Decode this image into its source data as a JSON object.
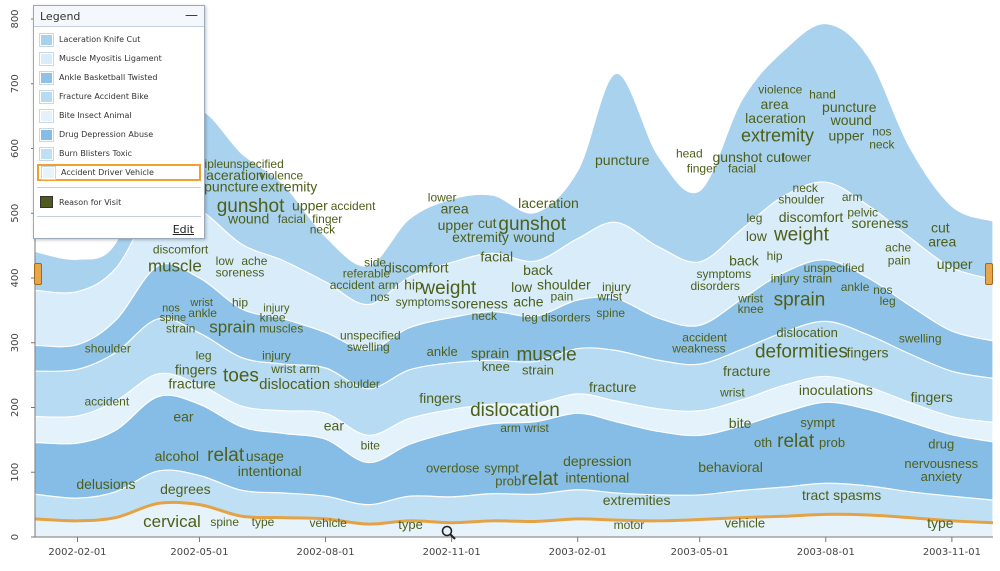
{
  "legend": {
    "title": "Legend",
    "minimize_glyph": "—",
    "items": [
      {
        "label": "Laceration Knife Cut",
        "color": "#a9d2ee"
      },
      {
        "label": "Muscle Myositis Ligament",
        "color": "#d8ecfa"
      },
      {
        "label": "Ankle Basketball Twisted",
        "color": "#8fc2e8"
      },
      {
        "label": "Fracture Accident Bike",
        "color": "#b7dbf2"
      },
      {
        "label": "Bite Insect Animal",
        "color": "#e3f2fb"
      },
      {
        "label": "Drug Depression Abuse",
        "color": "#86bde6"
      },
      {
        "label": "Burn Blisters Toxic",
        "color": "#bfe0f4"
      },
      {
        "label": "Accident Driver Vehicle",
        "color": "#e6f3fb",
        "selected": true
      }
    ],
    "reason_label": "Reason for Visit",
    "reason_color": "#4e5a1e",
    "edit_label": "Edit"
  },
  "chart_data": {
    "type": "area",
    "subtype": "stacked streamgraph with word clouds",
    "x": [
      "2002-01-01",
      "2002-02-01",
      "2002-03-01",
      "2002-04-01",
      "2002-05-01",
      "2002-06-01",
      "2002-07-01",
      "2002-08-01",
      "2002-09-01",
      "2002-10-01",
      "2002-11-01",
      "2002-12-01",
      "2003-01-01",
      "2003-02-01",
      "2003-03-01",
      "2003-04-01",
      "2003-05-01",
      "2003-06-01",
      "2003-07-01",
      "2003-08-01",
      "2003-09-01",
      "2003-10-01",
      "2003-11-01",
      "2003-12-01"
    ],
    "xticks": [
      "2002-02-01",
      "2002-05-01",
      "2002-08-01",
      "2002-11-01",
      "2003-02-01",
      "2003-05-01",
      "2003-08-01",
      "2003-11-01"
    ],
    "yticks": [
      0,
      100,
      200,
      300,
      400,
      500,
      600,
      700,
      800
    ],
    "ylim": [
      0,
      810
    ],
    "grid": false,
    "legend_position": "top-left",
    "series": [
      {
        "name": "Accident Driver Vehicle",
        "color": "#e6f3fb",
        "values": [
          28,
          25,
          30,
          52,
          50,
          32,
          30,
          28,
          20,
          25,
          22,
          25,
          24,
          28,
          26,
          25,
          27,
          30,
          32,
          35,
          34,
          30,
          25,
          22
        ]
      },
      {
        "name": "Burn Blisters Toxic",
        "color": "#bfe0f4",
        "values": [
          38,
          35,
          40,
          50,
          45,
          40,
          38,
          35,
          30,
          38,
          40,
          42,
          42,
          45,
          42,
          40,
          38,
          42,
          45,
          48,
          45,
          40,
          38,
          35
        ]
      },
      {
        "name": "Drug Depression Abuse",
        "color": "#86bde6",
        "values": [
          80,
          85,
          95,
          115,
          110,
          98,
          92,
          88,
          65,
          80,
          100,
          108,
          112,
          118,
          110,
          98,
          92,
          100,
          115,
          125,
          118,
          108,
          95,
          90
        ]
      },
      {
        "name": "Bite Insect Animal",
        "color": "#e3f2fb",
        "values": [
          40,
          42,
          45,
          35,
          30,
          32,
          35,
          40,
          42,
          40,
          35,
          30,
          28,
          30,
          32,
          35,
          38,
          40,
          42,
          40,
          35,
          30,
          28,
          30
        ]
      },
      {
        "name": "Fracture Accident Bike",
        "color": "#b7dbf2",
        "values": [
          70,
          72,
          75,
          85,
          80,
          75,
          72,
          70,
          72,
          75,
          72,
          68,
          65,
          70,
          78,
          75,
          72,
          78,
          82,
          85,
          80,
          75,
          70,
          68
        ]
      },
      {
        "name": "Ankle Basketball Twisted",
        "color": "#8fc2e8",
        "values": [
          40,
          38,
          50,
          82,
          85,
          75,
          70,
          55,
          60,
          65,
          70,
          75,
          70,
          75,
          80,
          65,
          60,
          78,
          92,
          95,
          88,
          75,
          62,
          58
        ]
      },
      {
        "name": "Muscle Myositis Ligament",
        "color": "#d8ecfa",
        "values": [
          85,
          82,
          80,
          100,
          105,
          100,
          90,
          78,
          70,
          78,
          85,
          90,
          85,
          95,
          118,
          110,
          98,
          108,
          118,
          120,
          112,
          105,
          98,
          95
        ]
      },
      {
        "name": "Laceration Knife Cut",
        "color": "#a9d2ee",
        "values": [
          60,
          50,
          40,
          105,
          155,
          140,
          118,
          70,
          60,
          90,
          98,
          90,
          75,
          105,
          230,
          140,
          110,
          200,
          225,
          245,
          230,
          140,
          95,
          90
        ]
      }
    ],
    "words": [
      [
        "tiple",
        0.185,
        575.0,
        12
      ],
      [
        "unspecified",
        0.228,
        575.0,
        12
      ],
      [
        "laceration",
        0.207,
        557.0,
        14
      ],
      [
        "violence",
        0.257,
        557.0,
        12
      ],
      [
        "puncture",
        0.205,
        539.0,
        14
      ],
      [
        "extremity",
        0.265,
        539.0,
        14
      ],
      [
        "gunshot",
        0.225,
        510.0,
        19
      ],
      [
        "upper",
        0.287,
        510.0,
        14
      ],
      [
        "accident",
        0.332,
        510.0,
        12
      ],
      [
        "wound",
        0.223,
        490.0,
        14
      ],
      [
        "facial",
        0.268,
        490.0,
        12
      ],
      [
        "finger",
        0.305,
        490.0,
        12
      ],
      [
        "neck",
        0.3,
        474.0,
        12
      ],
      [
        "discomfort",
        0.152,
        443.0,
        12
      ],
      [
        "muscle",
        0.146,
        417.0,
        17
      ],
      [
        "low",
        0.198,
        425.0,
        12
      ],
      [
        "ache",
        0.229,
        425.0,
        12
      ],
      [
        "soreness",
        0.214,
        407.0,
        12
      ],
      [
        "nos",
        0.142,
        353.0,
        11
      ],
      [
        "wrist",
        0.174,
        361.0,
        11
      ],
      [
        "hip",
        0.214,
        361.0,
        12
      ],
      [
        "injury",
        0.252,
        353.0,
        11
      ],
      [
        "spine",
        0.144,
        338.0,
        11
      ],
      [
        "ankle",
        0.175,
        345.0,
        12
      ],
      [
        "knee",
        0.248,
        338.0,
        12
      ],
      [
        "strain",
        0.152,
        321.0,
        12
      ],
      [
        "sprain",
        0.206,
        323.0,
        17
      ],
      [
        "muscles",
        0.257,
        321.0,
        12
      ],
      [
        "unspecified",
        0.35,
        310.0,
        12
      ],
      [
        "swelling",
        0.348,
        292.0,
        12
      ],
      [
        "shoulder",
        0.076,
        290.0,
        12
      ],
      [
        "leg",
        0.176,
        279.0,
        12
      ],
      [
        "injury",
        0.252,
        279.0,
        12
      ],
      [
        "fingers",
        0.168,
        257.0,
        14
      ],
      [
        "toes",
        0.215,
        248.0,
        19
      ],
      [
        "wrist arm",
        0.272,
        258.0,
        12
      ],
      [
        "fracture",
        0.164,
        235.0,
        14
      ],
      [
        "dislocation",
        0.271,
        235.0,
        15
      ],
      [
        "shoulder",
        0.336,
        235.0,
        12
      ],
      [
        "accident",
        0.075,
        208.0,
        12
      ],
      [
        "ear",
        0.155,
        184.0,
        14
      ],
      [
        "ear",
        0.312,
        170.0,
        14
      ],
      [
        "bite",
        0.35,
        140.0,
        12
      ],
      [
        "alcohol",
        0.148,
        123.0,
        14
      ],
      [
        "relat",
        0.199,
        125.0,
        19
      ],
      [
        "usage",
        0.24,
        123.0,
        14
      ],
      [
        "intentional",
        0.245,
        100.0,
        14
      ],
      [
        "delusions",
        0.074,
        80.0,
        14
      ],
      [
        "degrees",
        0.157,
        72.0,
        14
      ],
      [
        "cervical",
        0.143,
        22.0,
        17
      ],
      [
        "spine",
        0.198,
        22.0,
        12
      ],
      [
        "type",
        0.238,
        22.0,
        12
      ],
      [
        "vehicle",
        0.306,
        20.0,
        12
      ],
      [
        "type",
        0.392,
        18.0,
        13
      ],
      [
        "lower",
        0.425,
        523.0,
        12
      ],
      [
        "area",
        0.438,
        505.0,
        14
      ],
      [
        "upper",
        0.439,
        480.0,
        14
      ],
      [
        "cut",
        0.472,
        483.0,
        14
      ],
      [
        "gunshot",
        0.519,
        482.0,
        19
      ],
      [
        "laceration",
        0.536,
        514.0,
        14
      ],
      [
        "extremity",
        0.465,
        461.0,
        14
      ],
      [
        "wound",
        0.521,
        461.0,
        14
      ],
      [
        "facial",
        0.482,
        431.0,
        14
      ],
      [
        "side",
        0.355,
        423.0,
        12
      ],
      [
        "discomfort",
        0.398,
        414.0,
        14
      ],
      [
        "referable",
        0.346,
        406.0,
        12
      ],
      [
        "accident",
        0.331,
        388.0,
        12
      ],
      [
        "arm",
        0.369,
        388.0,
        12
      ],
      [
        "hip",
        0.395,
        388.0,
        14
      ],
      [
        "weight",
        0.432,
        383.0,
        19
      ],
      [
        "nos",
        0.36,
        369.0,
        12
      ],
      [
        "symptoms",
        0.405,
        362.0,
        12
      ],
      [
        "soreness",
        0.464,
        359.0,
        14
      ],
      [
        "neck",
        0.469,
        340.0,
        12
      ],
      [
        "back",
        0.525,
        410.0,
        14
      ],
      [
        "low",
        0.508,
        384.0,
        14
      ],
      [
        "shoulder",
        0.552,
        388.0,
        14
      ],
      [
        "pain",
        0.55,
        370.0,
        12
      ],
      [
        "ache",
        0.515,
        362.0,
        14
      ],
      [
        "leg disorders",
        0.544,
        338.0,
        12
      ],
      [
        "ankle",
        0.425,
        285.0,
        13
      ],
      [
        "sprain",
        0.475,
        282.0,
        14
      ],
      [
        "knee",
        0.481,
        262.0,
        13
      ],
      [
        "muscle",
        0.534,
        280.0,
        19
      ],
      [
        "strain",
        0.525,
        256.0,
        13
      ],
      [
        "fingers",
        0.423,
        213.0,
        14
      ],
      [
        "dislocation",
        0.501,
        195.0,
        19
      ],
      [
        "arm wrist",
        0.511,
        167.0,
        12
      ],
      [
        "overdose",
        0.436,
        105.0,
        13
      ],
      [
        "sympt",
        0.487,
        105.0,
        13
      ],
      [
        "prob",
        0.494,
        85.0,
        13
      ],
      [
        "relat",
        0.527,
        88.0,
        19
      ],
      [
        "intentional",
        0.587,
        90.0,
        14
      ],
      [
        "depression",
        0.587,
        115.0,
        14
      ],
      [
        "extremities",
        0.628,
        55.0,
        14
      ],
      [
        "motor",
        0.62,
        17.0,
        12
      ],
      [
        "puncture",
        0.613,
        580.0,
        14
      ],
      [
        "injury",
        0.607,
        385.0,
        12
      ],
      [
        "wrist",
        0.6,
        370.0,
        12
      ],
      [
        "spine",
        0.601,
        345.0,
        12
      ],
      [
        "fracture",
        0.603,
        230.0,
        14
      ],
      [
        "head",
        0.683,
        591.0,
        12
      ],
      [
        "gunshot cut",
        0.745,
        585.0,
        14
      ],
      [
        "lower",
        0.795,
        585.0,
        12
      ],
      [
        "finger",
        0.696,
        568.0,
        12
      ],
      [
        "facial",
        0.738,
        568.0,
        12
      ],
      [
        "laceration",
        0.773,
        645.0,
        14
      ],
      [
        "area",
        0.772,
        667.0,
        14
      ],
      [
        "violence",
        0.778,
        690.0,
        12
      ],
      [
        "hand",
        0.822,
        682.0,
        12
      ],
      [
        "puncture",
        0.85,
        662.0,
        14
      ],
      [
        "wound",
        0.852,
        642.0,
        14
      ],
      [
        "extremity",
        0.775,
        618.0,
        18
      ],
      [
        "upper",
        0.847,
        618.0,
        14
      ],
      [
        "nos",
        0.884,
        625.0,
        12
      ],
      [
        "neck",
        0.884,
        605.0,
        12
      ],
      [
        "neck",
        0.804,
        538.0,
        12
      ],
      [
        "shoulder",
        0.8,
        520.0,
        12
      ],
      [
        "arm",
        0.853,
        524.0,
        12
      ],
      [
        "pelvic",
        0.864,
        500.0,
        12
      ],
      [
        "leg",
        0.751,
        491.0,
        12
      ],
      [
        "discomfort",
        0.81,
        492.0,
        14
      ],
      [
        "soreness",
        0.882,
        483.0,
        14
      ],
      [
        "low",
        0.753,
        463.0,
        14
      ],
      [
        "weight",
        0.8,
        466.0,
        19
      ],
      [
        "ache",
        0.901,
        446.0,
        12
      ],
      [
        "pain",
        0.902,
        426.0,
        12
      ],
      [
        "symptoms",
        0.719,
        405.0,
        12
      ],
      [
        "back",
        0.74,
        425.0,
        14
      ],
      [
        "hip",
        0.772,
        433.0,
        12
      ],
      [
        "disorders",
        0.71,
        386.0,
        12
      ],
      [
        "injury strain",
        0.8,
        398.0,
        12
      ],
      [
        "unspecified",
        0.834,
        414.0,
        12
      ],
      [
        "ankle",
        0.856,
        385.0,
        12
      ],
      [
        "nos",
        0.885,
        380.0,
        12
      ],
      [
        "leg",
        0.89,
        363.0,
        12
      ],
      [
        "wrist",
        0.747,
        367.0,
        12
      ],
      [
        "knee",
        0.747,
        351.0,
        12
      ],
      [
        "sprain",
        0.798,
        365.0,
        19
      ],
      [
        "dislocation",
        0.806,
        314.0,
        13
      ],
      [
        "swelling",
        0.924,
        305.0,
        12
      ],
      [
        "accident",
        0.699,
        307.0,
        12
      ],
      [
        "weakness",
        0.693,
        290.0,
        12
      ],
      [
        "deformities",
        0.8,
        285.0,
        19
      ],
      [
        "fingers",
        0.869,
        283.0,
        14
      ],
      [
        "fracture",
        0.743,
        254.0,
        14
      ],
      [
        "wrist",
        0.728,
        222.0,
        12
      ],
      [
        "inoculations",
        0.836,
        225.0,
        14
      ],
      [
        "fingers",
        0.936,
        214.0,
        14
      ],
      [
        "bite",
        0.736,
        174.0,
        14
      ],
      [
        "sympt",
        0.817,
        175.0,
        13
      ],
      [
        "oth",
        0.76,
        144.0,
        13
      ],
      [
        "relat",
        0.794,
        147.0,
        19
      ],
      [
        "prob",
        0.832,
        144.0,
        13
      ],
      [
        "behavioral",
        0.726,
        106.0,
        14
      ],
      [
        "drug",
        0.946,
        142.0,
        13
      ],
      [
        "nervousness",
        0.946,
        112.0,
        13
      ],
      [
        "anxiety",
        0.946,
        92.0,
        13
      ],
      [
        "tract spasms",
        0.842,
        63.0,
        14
      ],
      [
        "vehicle",
        0.741,
        20.0,
        13
      ],
      [
        "type",
        0.945,
        20.0,
        14
      ],
      [
        "cut",
        0.945,
        476.0,
        14
      ],
      [
        "area",
        0.947,
        454.0,
        14
      ],
      [
        "upper",
        0.96,
        420.0,
        14
      ]
    ]
  }
}
